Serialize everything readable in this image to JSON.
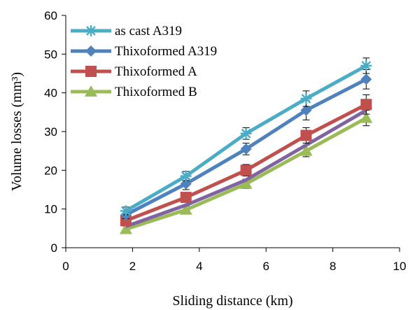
{
  "chart_data": {
    "type": "line",
    "xlabel": "Sliding distance (km)",
    "ylabel": "Volume losses (mm³)",
    "xlim": [
      0,
      10
    ],
    "ylim": [
      0,
      60
    ],
    "xticks": [
      0,
      2,
      4,
      6,
      8,
      10
    ],
    "yticks": [
      0,
      10,
      20,
      30,
      40,
      50,
      60
    ],
    "grid": false,
    "legend_position": "top-left",
    "x": [
      1.8,
      3.6,
      5.4,
      7.2,
      9.0
    ],
    "series": [
      {
        "name": "as cast A319",
        "values": [
          9.5,
          18.5,
          29.5,
          38.5,
          47.0
        ],
        "errors": [
          1.0,
          1.2,
          1.5,
          2.0,
          2.0
        ],
        "color": "#4BACC6",
        "marker": "star"
      },
      {
        "name": "Thixoformed A319",
        "values": [
          8.5,
          16.5,
          25.5,
          35.5,
          43.5
        ],
        "errors": [
          1.0,
          1.5,
          1.5,
          2.5,
          2.5
        ],
        "color": "#4F81BD",
        "marker": "diamond"
      },
      {
        "name": "Thixoformed A",
        "values": [
          7.0,
          13.0,
          20.0,
          29.0,
          37.0
        ],
        "errors": [
          1.0,
          1.0,
          1.5,
          2.0,
          2.5
        ],
        "color": "#C0504D",
        "marker": "square"
      },
      {
        "name": "",
        "values": [
          5.5,
          11.0,
          17.5,
          26.5,
          35.5
        ],
        "errors": [
          0,
          0,
          0,
          0,
          0
        ],
        "color": "#8064A2",
        "marker": "none"
      },
      {
        "name": "Thixoformed B",
        "values": [
          4.8,
          9.8,
          16.5,
          25.0,
          33.5
        ],
        "errors": [
          0.8,
          1.0,
          1.2,
          1.5,
          2.0
        ],
        "color": "#9BBB59",
        "marker": "triangle"
      }
    ]
  }
}
